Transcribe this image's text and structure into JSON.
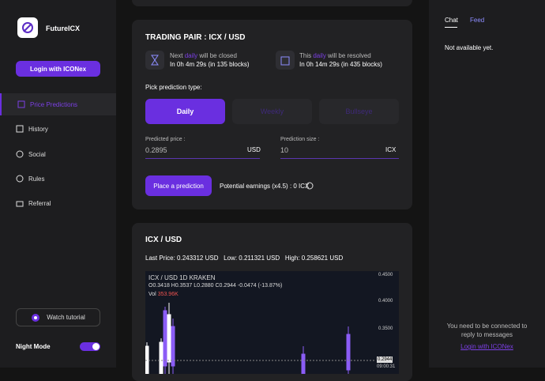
{
  "sidebar": {
    "brand": "FutureICX",
    "login_button": "Login with ICONex",
    "nav": [
      "Price Predictions",
      "History",
      "Social",
      "Rules",
      "Referral"
    ],
    "watch_tutorial": "Watch tutorial",
    "night_mode": "Night Mode"
  },
  "trading": {
    "title": "TRADING PAIR : ICX / USD",
    "next": {
      "prefix": "Next",
      "highlight": "daily",
      "suffix": "will be closed",
      "detail": "In 0h 4m 29s (in 135 blocks)"
    },
    "current": {
      "prefix": "This",
      "highlight": "daily",
      "suffix": "will be resolved",
      "detail": "In 0h 14m 29s (in 435 blocks)"
    },
    "pick_label": "Pick prediction type:",
    "types": [
      "Daily",
      "Weekly",
      "Bullseye"
    ],
    "price": {
      "label": "Predicted price :",
      "value": "0.2895",
      "unit": "USD"
    },
    "size": {
      "label": "Prediction size :",
      "value": "10",
      "unit": "ICX"
    },
    "place_button": "Place a prediction",
    "earnings": "Potential earnings (x4.5) : 0 ICX"
  },
  "chart_card": {
    "title": "ICX / USD",
    "last_price": "Last Price: 0.243312 USD",
    "low": "Low: 0.211321 USD",
    "high": "High: 0.258621 USD",
    "embed": {
      "symbol": "ICX / USD  1D  KRAKEN",
      "ohlc": "O0.3418 H0.3537 L0.2880 C0.2944 -0.0474 (-13.87%)",
      "vol_label": "Vol",
      "vol_value": "353.96K",
      "price_labels": [
        "0.4500",
        "0.4000",
        "0.3500",
        "0.2944"
      ],
      "time": "09:00:31"
    }
  },
  "right_panel": {
    "tabs": [
      "Chat",
      "Feed"
    ],
    "empty": "Not available yet.",
    "connect_line1": "You need to be connected to",
    "connect_line2": "reply to messages",
    "login_link": "Login with ICONex"
  }
}
